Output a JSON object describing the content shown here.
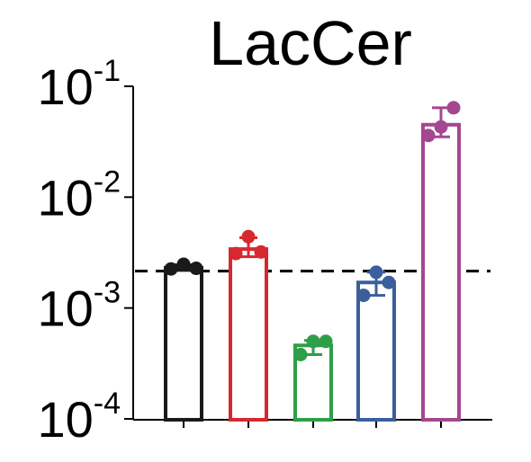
{
  "chart_data": {
    "type": "bar",
    "title": "LacCer",
    "xlabel": "",
    "ylabel": "",
    "yscale": "log",
    "ylim": [
      0.0001,
      0.1
    ],
    "y_ticks": [
      {
        "base": "10",
        "exp": "-1",
        "value": 0.1
      },
      {
        "base": "10",
        "exp": "-2",
        "value": 0.01
      },
      {
        "base": "10",
        "exp": "-3",
        "value": 0.001
      },
      {
        "base": "10",
        "exp": "-4",
        "value": 0.0001
      }
    ],
    "reference_line": {
      "value": 0.00215,
      "style": "dashed",
      "color": "#000000"
    },
    "bars": [
      {
        "color": "#1a1a1a",
        "mean": 0.0023,
        "err_low": 0.00218,
        "err_high": 0.00245,
        "points": [
          0.00225,
          0.00248,
          0.00228
        ]
      },
      {
        "color": "#d7282f",
        "mean": 0.0034,
        "err_low": 0.0029,
        "err_high": 0.0043,
        "points": [
          0.0031,
          0.0044,
          0.0032
        ]
      },
      {
        "color": "#2e9e48",
        "mean": 0.00046,
        "err_low": 0.00038,
        "err_high": 0.00051,
        "points": [
          0.00038,
          0.0005,
          0.0005
        ]
      },
      {
        "color": "#3a5f9c",
        "mean": 0.0017,
        "err_low": 0.0013,
        "err_high": 0.0021,
        "points": [
          0.0013,
          0.0021,
          0.0017
        ]
      },
      {
        "color": "#a4478f",
        "mean": 0.045,
        "err_low": 0.035,
        "err_high": 0.064,
        "points": [
          0.036,
          0.043,
          0.064
        ]
      }
    ]
  }
}
